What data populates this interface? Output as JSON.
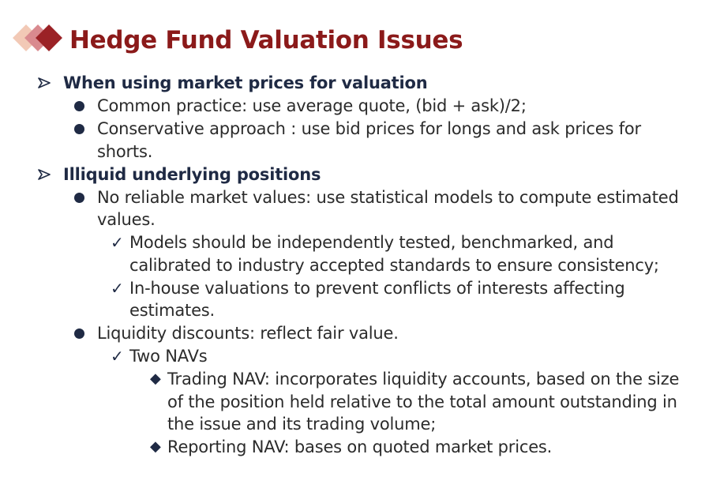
{
  "title": "Hedge Fund Valuation Issues",
  "sections": [
    {
      "heading": "When using market prices for valuation",
      "items": [
        {
          "lines": [
            "Common practice: use average quote, (bid + ask)/2;"
          ]
        },
        {
          "lines": [
            "Conservative approach : use bid prices for longs and ask prices for",
            "shorts."
          ]
        }
      ]
    },
    {
      "heading": "Illiquid underlying positions",
      "items": [
        {
          "lines": [
            "No reliable market values: use statistical models to compute estimated",
            "values."
          ],
          "subitems": [
            {
              "lines": [
                "Models should be independently tested, benchmarked, and",
                "calibrated to industry accepted standards to ensure consistency;"
              ]
            },
            {
              "lines": [
                "In-house valuations to prevent conflicts of interests affecting",
                "estimates."
              ]
            }
          ]
        },
        {
          "lines": [
            "Liquidity discounts: reflect fair value."
          ],
          "subitems": [
            {
              "lines": [
                "Two NAVs"
              ],
              "points": [
                {
                  "lines": [
                    "Trading NAV: incorporates liquidity accounts, based on the size",
                    "of the position held relative to the total amount outstanding in",
                    "the issue and its trading volume;"
                  ]
                },
                {
                  "lines": [
                    "Reporting NAV: bases on quoted market prices."
                  ]
                }
              ]
            }
          ]
        }
      ]
    }
  ],
  "colors": {
    "title": "#8b1a1a",
    "text": "#2b2b2b",
    "bullet": "#1f2a44",
    "logo_dark": "#9b2226",
    "logo_mid": "#d98a8f",
    "logo_light": "#f2c9b6"
  },
  "icons": {
    "section": "arrowhead-icon",
    "item": "filled-circle-icon",
    "subitem": "checkmark-icon",
    "point": "diamond-icon"
  }
}
